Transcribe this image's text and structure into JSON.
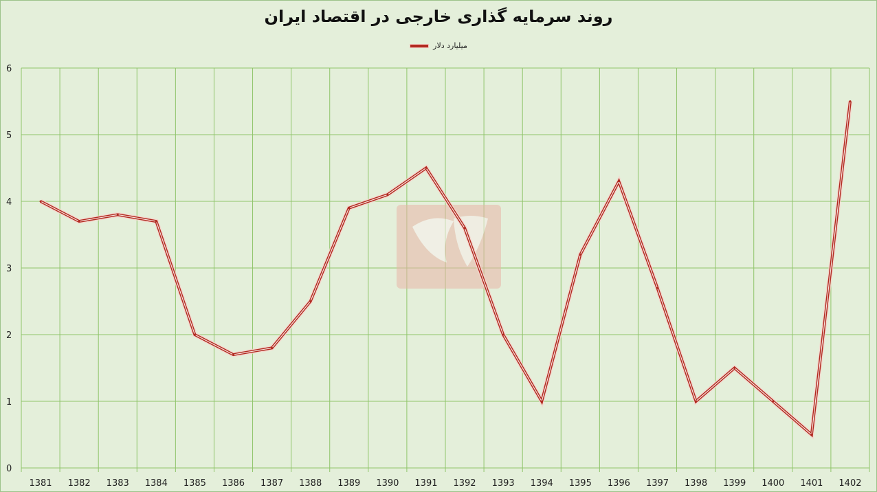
{
  "chart_data": {
    "type": "line",
    "title": "روند سرمایه گذاری خارجی در اقتصاد ایران",
    "xlabel": "",
    "ylabel": "",
    "categories": [
      "1381",
      "1382",
      "1383",
      "1384",
      "1385",
      "1386",
      "1387",
      "1388",
      "1389",
      "1390",
      "1391",
      "1392",
      "1393",
      "1394",
      "1395",
      "1396",
      "1397",
      "1398",
      "1399",
      "1400",
      "1401",
      "1402"
    ],
    "series": [
      {
        "name": "میلیارد دلار",
        "values": [
          4.0,
          3.7,
          3.8,
          3.7,
          2.0,
          1.7,
          1.8,
          2.5,
          3.9,
          4.1,
          4.5,
          3.6,
          2.0,
          1.0,
          3.2,
          4.3,
          2.7,
          1.0,
          1.5,
          1.0,
          0.5,
          5.5
        ]
      }
    ],
    "ylim": [
      0,
      6
    ],
    "yticks": [
      0,
      1,
      2,
      3,
      4,
      5,
      6
    ],
    "grid": true,
    "legend_position": "top-center",
    "colors": {
      "line": "#b12a20",
      "line_halo": "#f6d3cc",
      "grid": "#8fc46a",
      "background": "#e4efda",
      "watermark": "#e8b5a8"
    }
  }
}
